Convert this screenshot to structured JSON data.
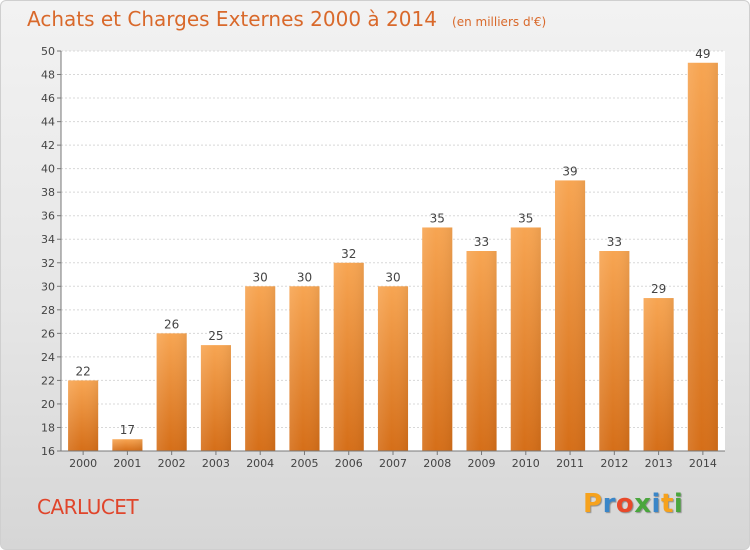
{
  "chart_data": {
    "type": "bar",
    "title": "Achats et Charges Externes 2000 à 2014",
    "subtitle": "(en milliers d'€)",
    "categories": [
      "2000",
      "2001",
      "2002",
      "2003",
      "2004",
      "2005",
      "2006",
      "2007",
      "2008",
      "2009",
      "2010",
      "2011",
      "2012",
      "2013",
      "2014"
    ],
    "values": [
      22,
      17,
      26,
      25,
      30,
      30,
      32,
      30,
      35,
      33,
      35,
      39,
      33,
      29,
      49
    ],
    "data_labels": [
      "22",
      "17",
      "26",
      "25",
      "30",
      "30",
      "32",
      "30",
      "35",
      "33",
      "35",
      "39",
      "33",
      "29",
      "49"
    ],
    "ylim": [
      16,
      50
    ],
    "yticks": [
      16,
      18,
      20,
      22,
      24,
      26,
      28,
      30,
      32,
      34,
      36,
      38,
      40,
      42,
      44,
      46,
      48,
      50
    ],
    "ytick_labels": [
      "16",
      "18",
      "20",
      "22",
      "24",
      "26",
      "28",
      "30",
      "32",
      "34",
      "36",
      "38",
      "40",
      "42",
      "44",
      "46",
      "48",
      "50"
    ],
    "grid": true,
    "bar_color": "#f0923e",
    "xlabel": "",
    "ylabel": ""
  },
  "commune": "CARLUCET",
  "logo": {
    "letters": [
      "P",
      "r",
      "o",
      "x",
      "i",
      "t",
      "i"
    ],
    "colors": [
      "#f6a21d",
      "#3a86c8",
      "#e8492a",
      "#4aa63d",
      "#3a86c8",
      "#f6a21d",
      "#4aa63d"
    ]
  }
}
